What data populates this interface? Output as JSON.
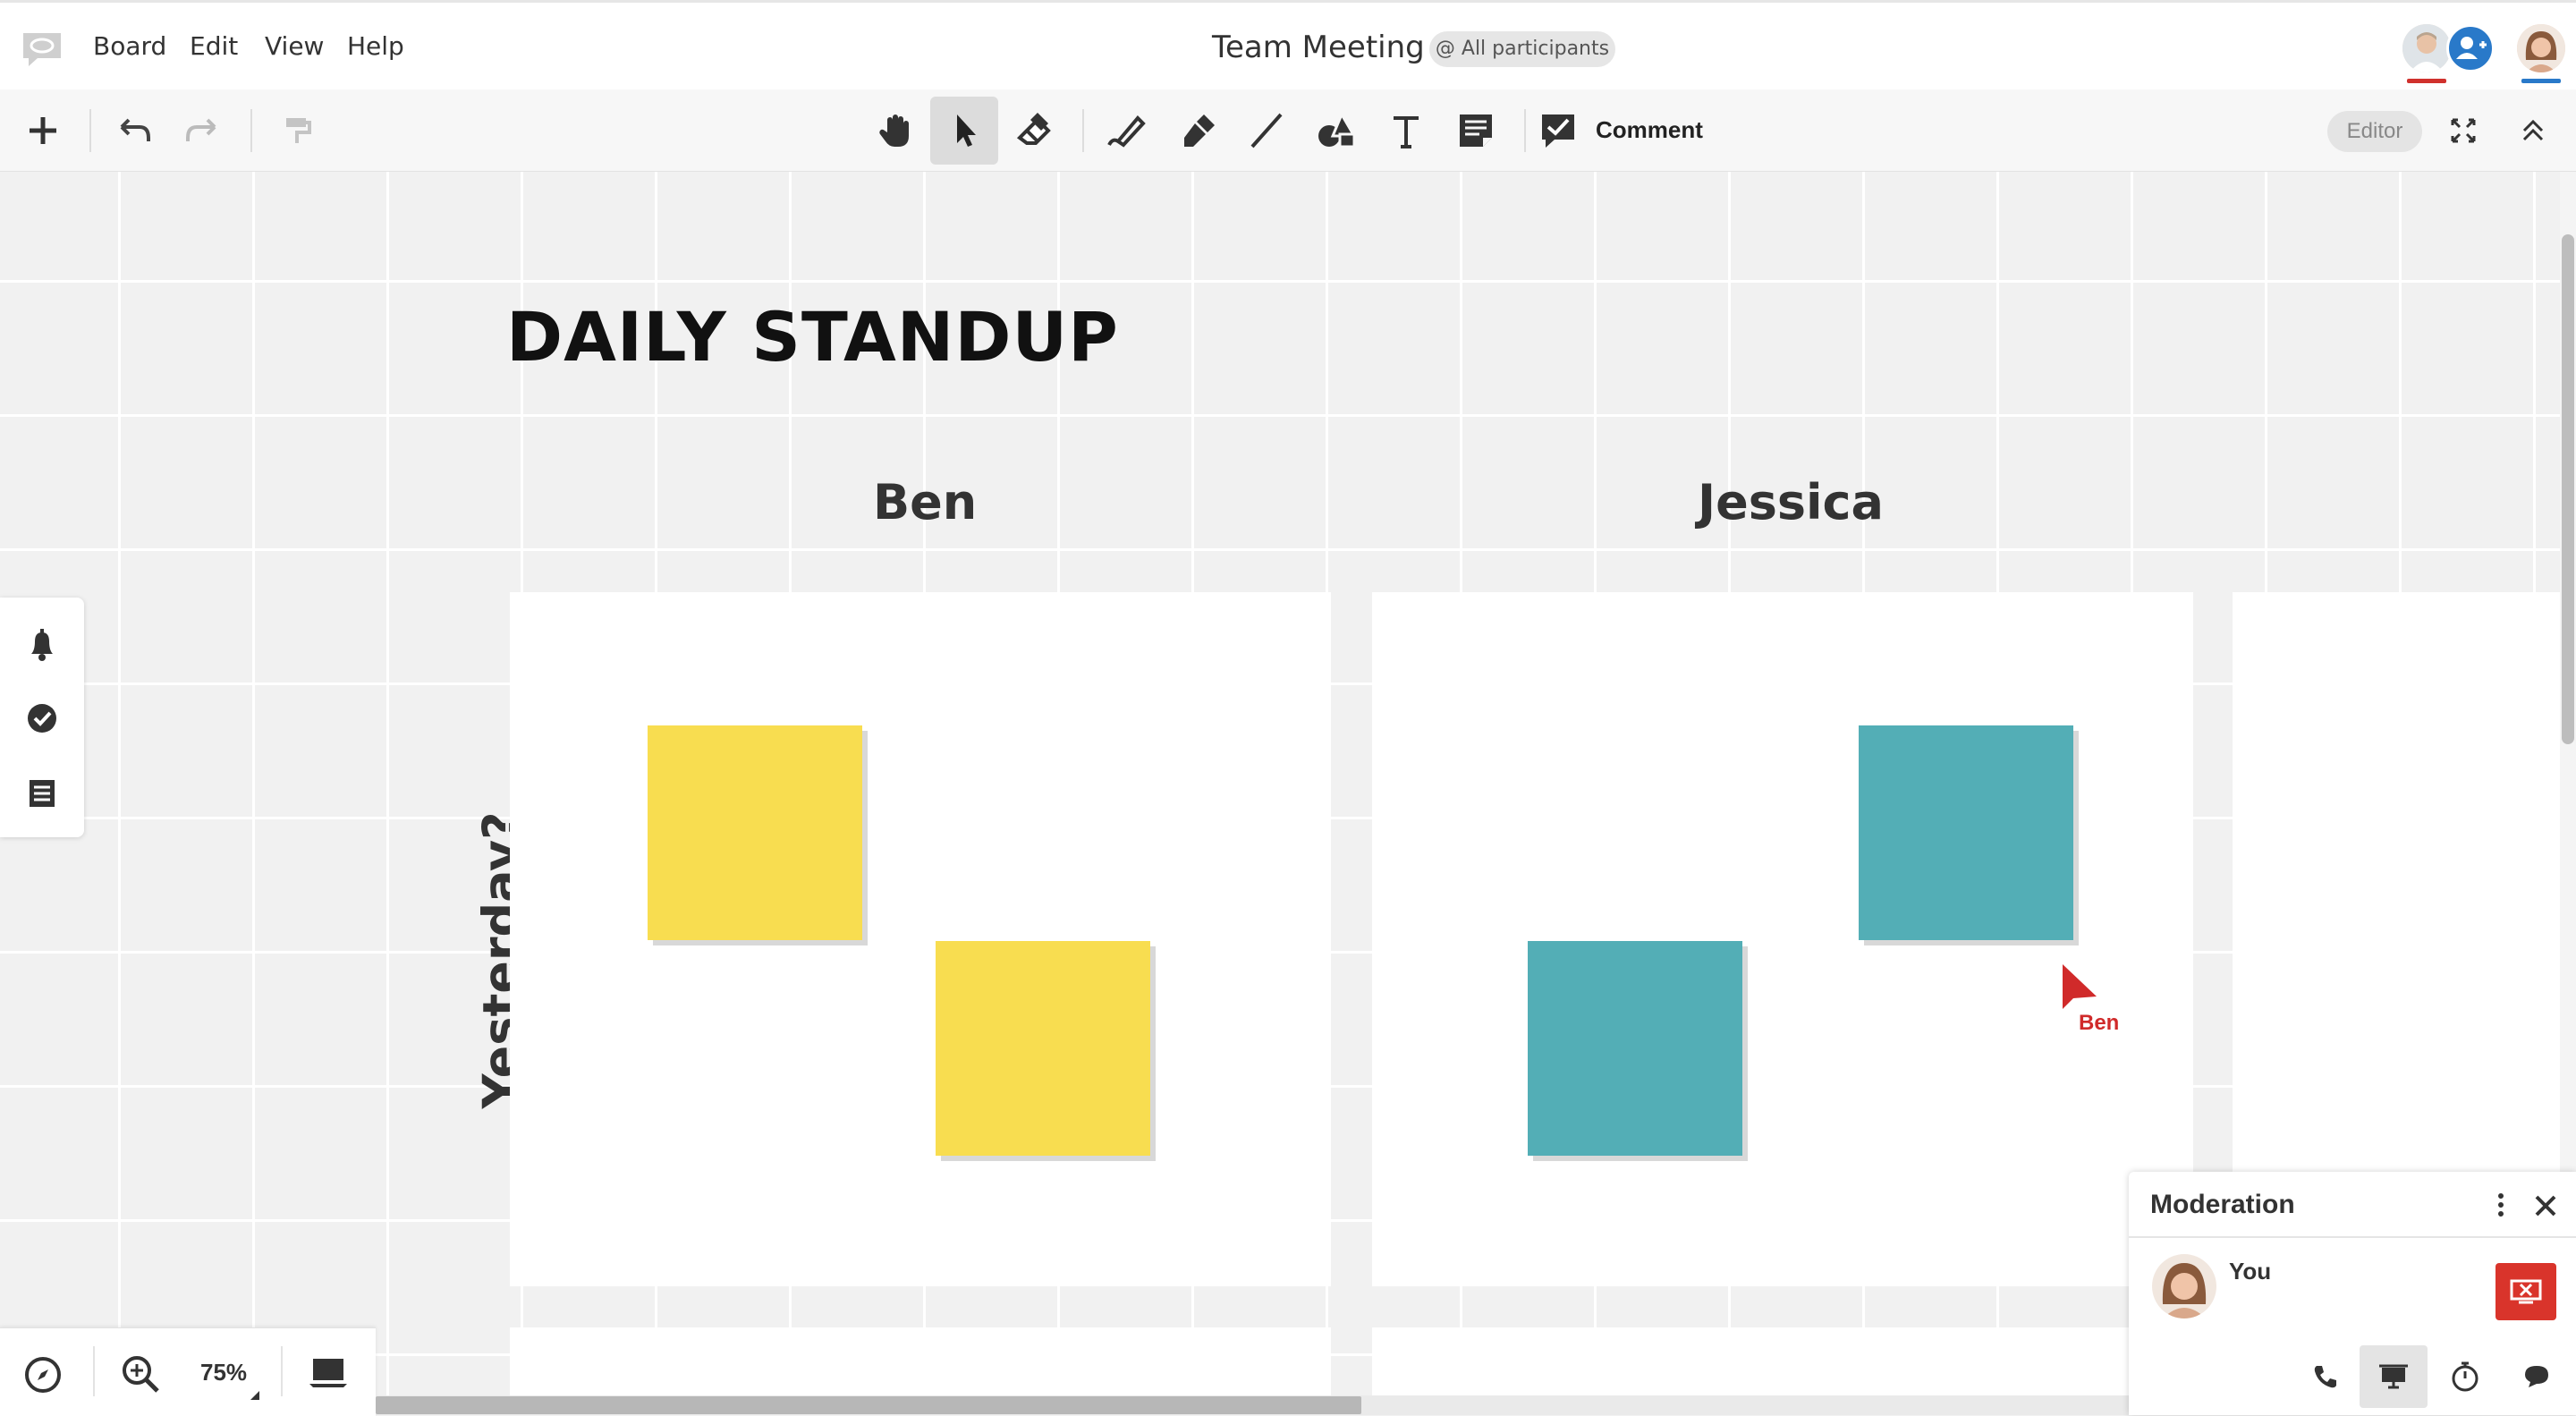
{
  "menubar": {
    "menus": [
      "Board",
      "Edit",
      "View",
      "Help"
    ],
    "board_title": "Team Meeting",
    "participants_badge": "@ All participants"
  },
  "toolbar": {
    "tools": [
      "plus-icon",
      "undo-icon",
      "redo-icon",
      "format-painter-icon",
      "hand-icon",
      "pointer-icon",
      "eraser-icon",
      "pen-icon",
      "marker-icon",
      "line-icon",
      "shapes-icon",
      "text-icon",
      "sticky-note-icon",
      "comment-icon"
    ],
    "active_tool": "pointer-icon",
    "comment_label": "Comment",
    "role_badge": "Editor"
  },
  "board": {
    "heading": "DAILY STANDUP",
    "columns": [
      "Ben",
      "Jessica"
    ],
    "row_label": "Yesterday?",
    "sticky_colors": {
      "yellow": "#f8dd50",
      "teal": "#53aeb6"
    },
    "remote_cursor": {
      "name": "Ben",
      "color": "#d02a2a"
    }
  },
  "side_panel": {
    "icons": [
      "bell-icon",
      "check-circle-icon",
      "list-icon"
    ]
  },
  "zoom": {
    "value": "75%"
  },
  "moderation": {
    "title": "Moderation",
    "participant": "You",
    "footer_icons": [
      "phone-icon",
      "presentation-icon",
      "timer-icon",
      "chat-icon"
    ],
    "accent_color": "#d9342b"
  }
}
